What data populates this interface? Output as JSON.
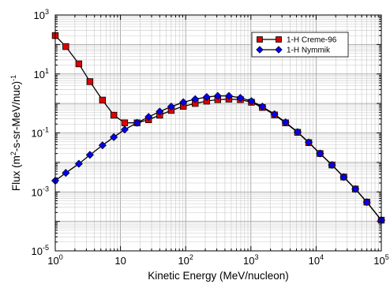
{
  "chart_data": {
    "type": "line",
    "xscale": "log",
    "yscale": "log",
    "xlim": [
      1,
      100000
    ],
    "ylim": [
      1e-05,
      1000
    ],
    "xlabel": "Kinetic Energy (MeV/nucleon)",
    "ylabel": {
      "pre": "Flux  (m",
      "sup1": "2",
      "mid": "-s-sr-MeV/nuc)",
      "sup2": "-1"
    },
    "x_ticks": [
      {
        "base": "10",
        "exp": "0",
        "value": 1
      },
      {
        "base": "10",
        "exp": "",
        "value": 10
      },
      {
        "base": "10",
        "exp": "2",
        "value": 100
      },
      {
        "base": "10",
        "exp": "3",
        "value": 1000
      },
      {
        "base": "10",
        "exp": "4",
        "value": 10000
      },
      {
        "base": "10",
        "exp": "5",
        "value": 100000
      }
    ],
    "y_ticks": [
      {
        "base": "10",
        "exp": "3",
        "value": 1000
      },
      {
        "base": "10",
        "exp": "1",
        "value": 10
      },
      {
        "base": "10",
        "exp": "-1",
        "value": 0.1
      },
      {
        "base": "10",
        "exp": "-3",
        "value": 0.001
      },
      {
        "base": "10",
        "exp": "-5",
        "value": 1e-05
      }
    ],
    "grid": true,
    "legend_position": "top-right",
    "series": [
      {
        "name": "1-H Creme-96",
        "color": "#e00000",
        "marker": "square",
        "x": [
          1.0,
          1.45,
          2.3,
          3.4,
          5.3,
          7.9,
          11.6,
          18,
          27,
          40,
          60,
          92,
          140,
          210,
          310,
          460,
          690,
          1020,
          1500,
          2300,
          3400,
          5200,
          7700,
          11500,
          17500,
          26500,
          40000,
          60000,
          100000
        ],
        "y": [
          200,
          85,
          22,
          5.5,
          1.3,
          0.4,
          0.22,
          0.22,
          0.28,
          0.4,
          0.58,
          0.8,
          1.0,
          1.2,
          1.35,
          1.4,
          1.35,
          1.1,
          0.73,
          0.41,
          0.22,
          0.105,
          0.047,
          0.02,
          0.0082,
          0.0032,
          0.00125,
          0.00045,
          0.00011
        ]
      },
      {
        "name": "1-H Nymmik",
        "color": "#0000ee",
        "marker": "diamond",
        "x": [
          1.0,
          1.45,
          2.3,
          3.4,
          5.3,
          7.9,
          11.6,
          18,
          27,
          40,
          60,
          92,
          140,
          210,
          310,
          460,
          690,
          1020,
          1500,
          2300,
          3400,
          5200,
          7700,
          11500,
          17500,
          26500,
          40000,
          60000,
          100000
        ],
        "y": [
          0.0024,
          0.0044,
          0.009,
          0.018,
          0.038,
          0.072,
          0.13,
          0.22,
          0.35,
          0.53,
          0.78,
          1.1,
          1.4,
          1.65,
          1.8,
          1.8,
          1.55,
          1.2,
          0.78,
          0.43,
          0.23,
          0.107,
          0.048,
          0.02,
          0.0082,
          0.0032,
          0.00125,
          0.00045,
          0.00011
        ]
      }
    ]
  }
}
